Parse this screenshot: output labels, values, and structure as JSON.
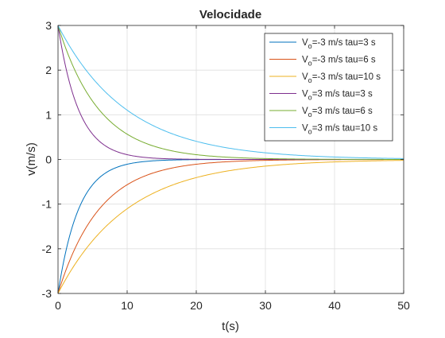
{
  "chart_data": {
    "type": "line",
    "title": "Velocidade",
    "xlabel": "t(s)",
    "ylabel": "v(m/s)",
    "xlim": [
      0,
      50
    ],
    "ylim": [
      -3,
      3
    ],
    "xticks": [
      0,
      10,
      20,
      30,
      40,
      50
    ],
    "yticks": [
      -3,
      -2,
      -1,
      0,
      1,
      2,
      3
    ],
    "grid": true,
    "legend_position": "top-right",
    "series": [
      {
        "label": {
          "main": "V",
          "sub": "o",
          "rest": "=-3 m/s tau=3 s"
        },
        "v0": -3,
        "tau": 3,
        "color": "#0072BD"
      },
      {
        "label": {
          "main": "V",
          "sub": "o",
          "rest": "=-3 m/s tau=6 s"
        },
        "v0": -3,
        "tau": 6,
        "color": "#D95319"
      },
      {
        "label": {
          "main": "V",
          "sub": "o",
          "rest": "=-3 m/s tau=10 s"
        },
        "v0": -3,
        "tau": 10,
        "color": "#EDB120"
      },
      {
        "label": {
          "main": "V",
          "sub": "o",
          "rest": "=3 m/s tau=3 s"
        },
        "v0": 3,
        "tau": 3,
        "color": "#7E2F8E"
      },
      {
        "label": {
          "main": "V",
          "sub": "o",
          "rest": "=3 m/s tau=6 s"
        },
        "v0": 3,
        "tau": 6,
        "color": "#77AC30"
      },
      {
        "label": {
          "main": "V",
          "sub": "o",
          "rest": "=3 m/s tau=10 s"
        },
        "v0": 3,
        "tau": 10,
        "color": "#4DBEEE"
      }
    ]
  }
}
